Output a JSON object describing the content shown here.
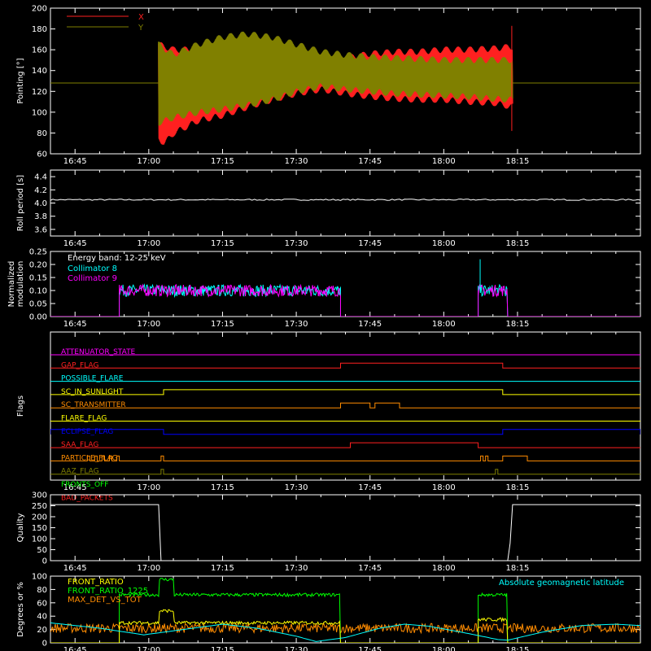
{
  "chart_data": [
    {
      "type": "line",
      "id": "pointing",
      "ylabel": "Pointing [°]",
      "ylim": [
        60,
        200
      ],
      "yticks": [
        60,
        80,
        100,
        120,
        140,
        160,
        180,
        200
      ],
      "xtick_labels": [
        "16:45",
        "17:00",
        "17:15",
        "17:30",
        "17:45",
        "18:00",
        "18:15"
      ],
      "xlim_min": [
        -5,
        115
      ],
      "data_window_min": [
        17,
        89
      ],
      "constant_before_after": 128,
      "series": [
        {
          "name": "X",
          "color": "#ff2020",
          "envelope_upper": [
            [
              17,
              165
            ],
            [
              20,
              160
            ],
            [
              25,
              160
            ],
            [
              30,
              162
            ],
            [
              35,
              162
            ],
            [
              40,
              160
            ],
            [
              45,
              155
            ],
            [
              50,
              152
            ],
            [
              55,
              152
            ],
            [
              60,
              156
            ],
            [
              65,
              158
            ],
            [
              70,
              158
            ],
            [
              75,
              160
            ],
            [
              80,
              160
            ],
            [
              85,
              161
            ],
            [
              89,
              163
            ]
          ],
          "envelope_lower": [
            [
              17,
              75
            ],
            [
              18,
              70
            ],
            [
              20,
              80
            ],
            [
              25,
              92
            ],
            [
              30,
              97
            ],
            [
              35,
              105
            ],
            [
              40,
              112
            ],
            [
              45,
              118
            ],
            [
              50,
              122
            ],
            [
              55,
              118
            ],
            [
              60,
              115
            ],
            [
              65,
              113
            ],
            [
              70,
              112
            ],
            [
              75,
              112
            ],
            [
              80,
              110
            ],
            [
              85,
              109
            ],
            [
              89,
              105
            ]
          ]
        },
        {
          "name": "Y",
          "color": "#808000",
          "envelope_upper": [
            [
              17,
              165
            ],
            [
              20,
              155
            ],
            [
              25,
              165
            ],
            [
              30,
              172
            ],
            [
              35,
              175
            ],
            [
              40,
              172
            ],
            [
              45,
              165
            ],
            [
              50,
              158
            ],
            [
              55,
              155
            ],
            [
              60,
              153
            ],
            [
              65,
              152
            ],
            [
              70,
              151
            ],
            [
              75,
              150
            ],
            [
              80,
              150
            ],
            [
              85,
              150
            ],
            [
              89,
              150
            ]
          ],
          "envelope_lower": [
            [
              17,
              90
            ],
            [
              20,
              95
            ],
            [
              25,
              100
            ],
            [
              30,
              103
            ],
            [
              35,
              107
            ],
            [
              40,
              112
            ],
            [
              45,
              120
            ],
            [
              50,
              125
            ],
            [
              55,
              122
            ],
            [
              60,
              120
            ],
            [
              65,
              118
            ],
            [
              70,
              117
            ],
            [
              75,
              116
            ],
            [
              80,
              115
            ],
            [
              85,
              113
            ],
            [
              89,
              112
            ]
          ]
        }
      ]
    },
    {
      "type": "line",
      "id": "roll-period",
      "ylabel": "Roll period [s]",
      "ylim": [
        3.5,
        4.5
      ],
      "yticks": [
        3.6,
        3.8,
        4.0,
        4.2,
        4.4
      ],
      "ytick_labels": [
        "3.6",
        "3.8",
        "4.0",
        "4.2",
        "4.4"
      ],
      "xtick_labels": [
        "16:45",
        "17:00",
        "17:15",
        "17:30",
        "17:45",
        "18:00",
        "18:15"
      ],
      "xlim_min": [
        -5,
        115
      ],
      "series": [
        {
          "name": "",
          "color": "#ffffff",
          "value": 4.05
        }
      ]
    },
    {
      "type": "line",
      "id": "modulation",
      "ylabel": "Normalized modulation",
      "ylim": [
        0,
        0.25
      ],
      "yticks": [
        0,
        0.05,
        0.1,
        0.15,
        0.2,
        0.25
      ],
      "ytick_labels": [
        "0.00",
        "0.05",
        "0.10",
        "0.15",
        "0.20",
        "0.25"
      ],
      "xtick_labels": [
        "16:45",
        "17:00",
        "17:15",
        "17:30",
        "17:45",
        "18:00",
        "18:15"
      ],
      "xlim_min": [
        -5,
        115
      ],
      "annotation": "Energy band: 12-25 keV",
      "segments_min": [
        [
          9,
          54
        ],
        [
          82,
          88
        ]
      ],
      "series": [
        {
          "name": "Collimator 8",
          "color": "#00ffff",
          "mean": 0.1
        },
        {
          "name": "Collimator 9",
          "color": "#ff00ff",
          "mean": 0.1
        }
      ]
    },
    {
      "type": "line",
      "id": "flags",
      "ylabel": "Flags",
      "xtick_labels": [
        "16:45",
        "17:00",
        "17:15",
        "17:30",
        "17:45",
        "18:00",
        "18:15"
      ],
      "xlim_min": [
        -5,
        115
      ],
      "series": [
        {
          "name": "ATTENUATOR_STATE",
          "color": "#ff00ff",
          "high_min": []
        },
        {
          "name": "GAP_FLAG",
          "color": "#ff2020",
          "high_min": [
            [
              54,
              87
            ]
          ]
        },
        {
          "name": "POSSIBLE_FLARE",
          "color": "#00ffff",
          "high_min": []
        },
        {
          "name": "SC_IN_SUNLIGHT",
          "color": "#ffff00",
          "high_min": [
            [
              18,
              87
            ]
          ]
        },
        {
          "name": "SC_TRANSMITTER",
          "color": "#ff8c00",
          "high_min": [
            [
              54,
              60
            ],
            [
              61,
              66
            ]
          ]
        },
        {
          "name": "FLARE_FLAG",
          "color": "#ffff00",
          "high_min": []
        },
        {
          "name": "ECLIPSE_FLAG",
          "color": "#0000ff",
          "high_min": [
            [
              -5,
              18
            ],
            [
              87,
              115
            ]
          ]
        },
        {
          "name": "SAA_FLAG",
          "color": "#ff2020",
          "high_min": [
            [
              56,
              82
            ]
          ]
        },
        {
          "name": "PARTICLE_FLAG",
          "color": "#ff8c00",
          "high_min": [
            [
              2.5,
              3
            ],
            [
              4,
              4.5
            ],
            [
              5.5,
              6
            ],
            [
              7,
              7.5
            ],
            [
              8.5,
              9
            ],
            [
              17.5,
              18
            ],
            [
              82.5,
              83
            ],
            [
              83.5,
              84
            ],
            [
              87,
              92
            ]
          ]
        },
        {
          "name": "AAZ_FLAG",
          "color": "#808000",
          "high_min": [
            [
              17.5,
              18
            ],
            [
              85.5,
              86
            ]
          ]
        },
        {
          "name": "FRONTS_OFF",
          "color": "#00ff00",
          "high_min": [
            [
              -5,
              9
            ],
            [
              92,
              115
            ]
          ]
        },
        {
          "name": "BAD_PACKETS",
          "color": "#ff2020",
          "high_min": [
            [
              113.5,
              114
            ]
          ]
        }
      ]
    },
    {
      "type": "line",
      "id": "quality",
      "ylabel": "Quality",
      "ylim": [
        0,
        300
      ],
      "yticks": [
        0,
        50,
        100,
        150,
        200,
        250,
        300
      ],
      "xtick_labels": [
        "16:45",
        "17:00",
        "17:15",
        "17:30",
        "17:45",
        "18:00",
        "18:15"
      ],
      "xlim_min": [
        -5,
        115
      ],
      "series": [
        {
          "name": "",
          "color": "#ffffff",
          "points_min": [
            [
              -5,
              255
            ],
            [
              17,
              255
            ],
            [
              17.5,
              0
            ],
            [
              88,
              0
            ],
            [
              88.5,
              80
            ],
            [
              89,
              255
            ],
            [
              115,
              255
            ]
          ]
        }
      ]
    },
    {
      "type": "line",
      "id": "ratios",
      "ylabel": "Degrees or %",
      "ylim": [
        0,
        100
      ],
      "yticks": [
        0,
        20,
        40,
        60,
        80,
        100
      ],
      "xtick_labels": [
        "16:45",
        "17:00",
        "17:15",
        "17:30",
        "17:45",
        "18:00",
        "18:15"
      ],
      "xlim_min": [
        -5,
        115
      ],
      "series": [
        {
          "name": "FRONT_RATIO",
          "color": "#ffff00",
          "segments_min": [
            [
              9,
              54,
              30
            ],
            [
              82,
              88,
              35
            ]
          ],
          "bump_min": [
            17,
            20,
            48
          ]
        },
        {
          "name": "FRONT_RATIO_1225",
          "color": "#00ff00",
          "segments_min": [
            [
              9,
              54,
              72
            ],
            [
              82,
              88,
              72
            ]
          ],
          "bump_min": [
            17,
            20,
            95
          ]
        },
        {
          "name": "MAX_DET_VS_TOT",
          "color": "#ff8c00",
          "mean": 22
        },
        {
          "name": "Absolute geomagnetic latitude",
          "color": "#00ffff",
          "points_min": [
            [
              -5,
              30
            ],
            [
              5,
              22
            ],
            [
              14,
              12
            ],
            [
              22,
              20
            ],
            [
              30,
              28
            ],
            [
              37,
              22
            ],
            [
              45,
              10
            ],
            [
              49,
              2
            ],
            [
              55,
              8
            ],
            [
              62,
              22
            ],
            [
              67,
              28
            ],
            [
              72,
              25
            ],
            [
              80,
              14
            ],
            [
              86,
              5
            ],
            [
              88,
              4
            ],
            [
              95,
              16
            ],
            [
              103,
              26
            ],
            [
              110,
              28
            ],
            [
              115,
              26
            ]
          ]
        }
      ]
    }
  ]
}
